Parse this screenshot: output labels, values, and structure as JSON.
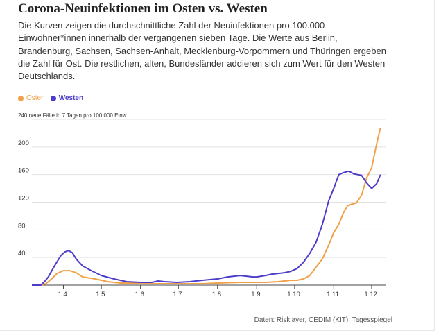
{
  "header": {
    "title": "Corona-Neuinfektionen im Osten vs. Westen",
    "subtitle": "Die Kurven zeigen die durchschnittliche Zahl der Neuinfektionen pro 100.000 Einwohner*innen innerhalb der vergangenen sieben Tage. Die Werte aus Berlin, Brandenburg, Sachsen, Sachsen-Anhalt, Mecklenburg-Vorpommern und Thüringen ergeben die Zahl für Ost. Die restlichen, alten, Bundesländer addieren sich zum Wert für den Westen Deutschlands."
  },
  "footer": {
    "source": "Daten: Risklayer, CEDIM (KIT), Tagesspiegel"
  },
  "colors": {
    "osten": "#f0a14a",
    "westen": "#4d3cc9"
  },
  "chart_data": {
    "type": "line",
    "ylabel": "neue Fälle in 7 Tagen pro 100.000 Einw.",
    "ylim": [
      0,
      240
    ],
    "yticks": [
      "240",
      "200",
      "160",
      "120",
      "80",
      "40"
    ],
    "ytick_values": [
      240,
      200,
      160,
      120,
      80,
      40
    ],
    "xlim": [
      -25,
      255
    ],
    "xticks": [
      "1.4.",
      "1.5.",
      "1.6.",
      "1.7.",
      "1.8.",
      "1.9.",
      "1.10.",
      "1.11.",
      "1.12."
    ],
    "xtick_values": [
      0,
      30,
      61,
      91,
      122,
      153,
      183,
      214,
      244
    ],
    "grid": true,
    "legend": "top-left",
    "series": [
      {
        "name": "Osten",
        "color": "#f0a14a",
        "x": [
          -25,
          -18,
          -14,
          -10,
          -5,
          0,
          5,
          10,
          15,
          25,
          35,
          45,
          55,
          61,
          75,
          90,
          100,
          110,
          122,
          140,
          153,
          160,
          170,
          180,
          185,
          190,
          195,
          200,
          205,
          210,
          214,
          218,
          222,
          225,
          228,
          232,
          236,
          240,
          244,
          248,
          251
        ],
        "y": [
          0,
          0,
          2,
          8,
          17,
          21,
          21,
          18,
          12,
          9,
          5,
          3,
          3,
          2,
          2,
          2,
          2,
          2,
          3,
          4,
          4,
          4,
          5,
          7,
          7,
          9,
          14,
          26,
          38,
          58,
          76,
          88,
          106,
          115,
          117,
          119,
          130,
          155,
          170,
          205,
          228
        ]
      },
      {
        "name": "Westen",
        "color": "#4d3cc9",
        "x": [
          -25,
          -18,
          -15,
          -12,
          -8,
          -5,
          -2,
          1,
          4,
          7,
          10,
          15,
          22,
          30,
          40,
          50,
          61,
          70,
          75,
          80,
          90,
          100,
          110,
          122,
          130,
          140,
          150,
          153,
          160,
          165,
          170,
          175,
          180,
          185,
          190,
          195,
          200,
          205,
          210,
          214,
          218,
          222,
          226,
          230,
          236,
          240,
          244,
          248,
          251
        ],
        "y": [
          0,
          0,
          5,
          12,
          25,
          34,
          43,
          48,
          50,
          47,
          38,
          28,
          21,
          14,
          9,
          5,
          4,
          4,
          6,
          5,
          4,
          5,
          7,
          9,
          12,
          14,
          12,
          12,
          14,
          16,
          17,
          18,
          20,
          24,
          33,
          46,
          62,
          88,
          122,
          140,
          160,
          163,
          165,
          161,
          159,
          148,
          140,
          147,
          160
        ]
      }
    ]
  }
}
